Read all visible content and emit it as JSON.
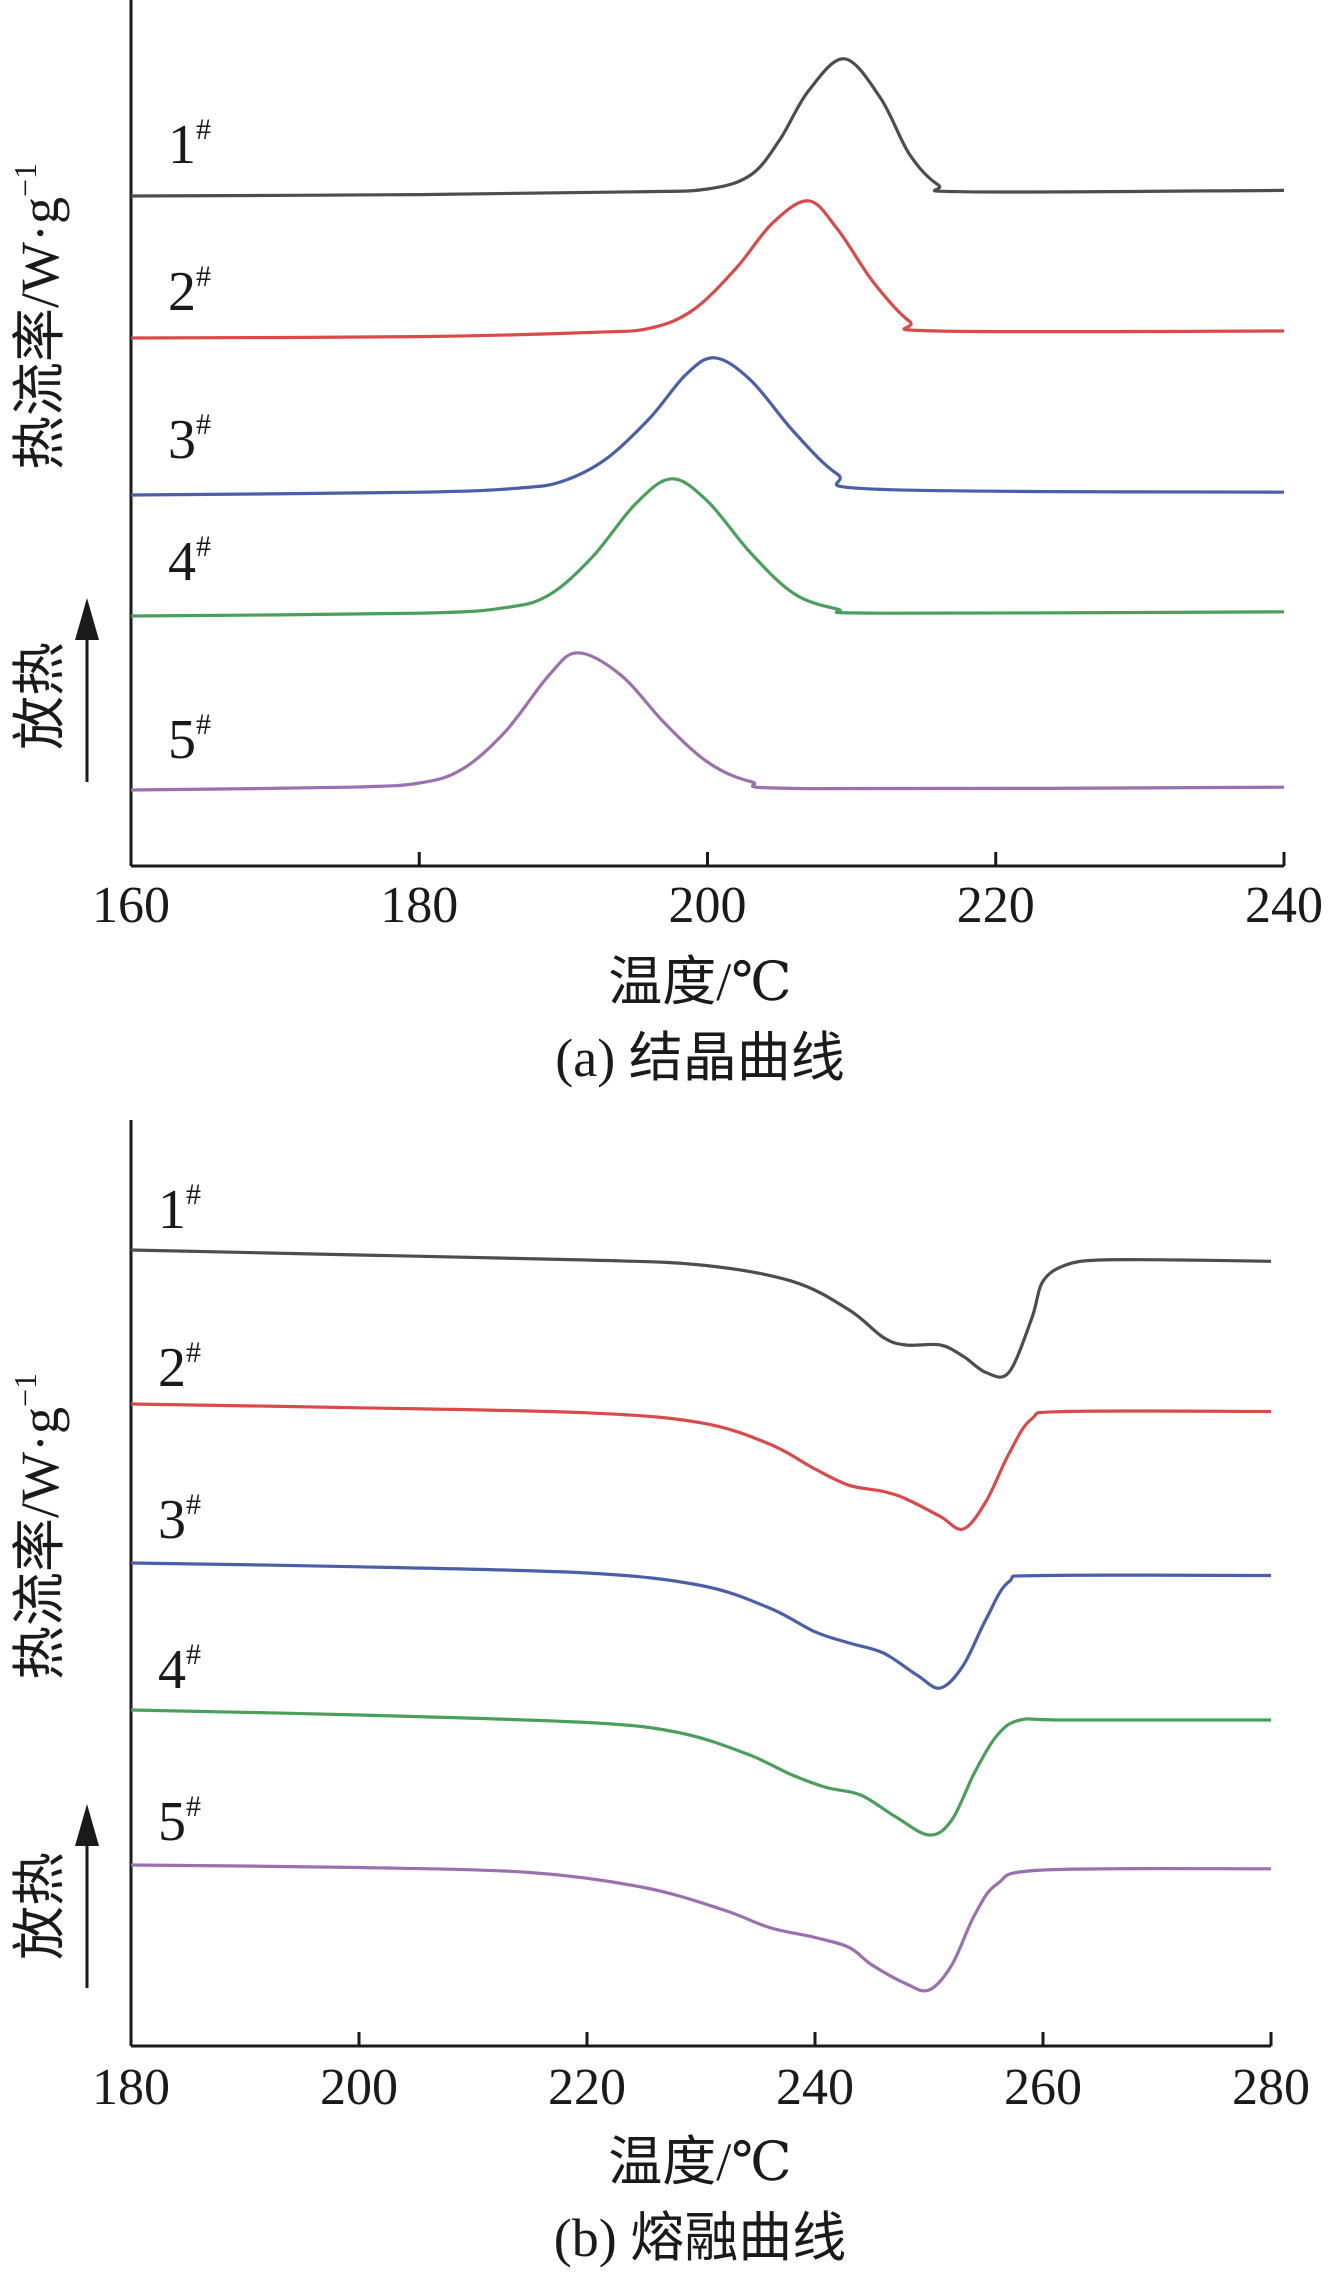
{
  "chart_data": [
    {
      "type": "line",
      "caption": "(a) 结晶曲线",
      "xlabel": "温度/℃",
      "ylabel": "热流率/W·g",
      "ylabel_sup": "−1",
      "exo_label": "放热",
      "xlim": [
        160,
        240
      ],
      "xticks": [
        160,
        180,
        200,
        220,
        240
      ],
      "series": [
        {
          "name": "1",
          "sup": "#",
          "color": "#4d4d4d",
          "points": [
            [
              160,
              0.0
            ],
            [
              180,
              0.01
            ],
            [
              195,
              0.03
            ],
            [
              200,
              0.05
            ],
            [
              203,
              0.15
            ],
            [
              205,
              0.4
            ],
            [
              207,
              0.75
            ],
            [
              209.5,
              0.98
            ],
            [
              212,
              0.7
            ],
            [
              214,
              0.3
            ],
            [
              216,
              0.08
            ],
            [
              218,
              0.03
            ],
            [
              240,
              0.04
            ]
          ]
        },
        {
          "name": "2",
          "sup": "#",
          "color": "#d94a4a",
          "points": [
            [
              160,
              0.0
            ],
            [
              180,
              0.01
            ],
            [
              192,
              0.04
            ],
            [
              196,
              0.07
            ],
            [
              199,
              0.2
            ],
            [
              202,
              0.5
            ],
            [
              204.5,
              0.82
            ],
            [
              207,
              0.98
            ],
            [
              209,
              0.78
            ],
            [
              211.5,
              0.4
            ],
            [
              214,
              0.12
            ],
            [
              216,
              0.05
            ],
            [
              240,
              0.05
            ]
          ]
        },
        {
          "name": "3",
          "sup": "#",
          "color": "#4a5fa8",
          "points": [
            [
              160,
              0.0
            ],
            [
              180,
              0.02
            ],
            [
              187,
              0.05
            ],
            [
              190,
              0.1
            ],
            [
              193,
              0.26
            ],
            [
              196,
              0.55
            ],
            [
              198.5,
              0.86
            ],
            [
              200.5,
              0.98
            ],
            [
              203,
              0.82
            ],
            [
              206,
              0.45
            ],
            [
              209,
              0.15
            ],
            [
              212,
              0.04
            ],
            [
              240,
              0.02
            ]
          ]
        },
        {
          "name": "4",
          "sup": "#",
          "color": "#4aa05a",
          "points": [
            [
              160,
              0.0
            ],
            [
              180,
              0.02
            ],
            [
              186,
              0.06
            ],
            [
              189,
              0.15
            ],
            [
              192,
              0.42
            ],
            [
              195,
              0.8
            ],
            [
              197.5,
              0.98
            ],
            [
              200,
              0.82
            ],
            [
              203,
              0.45
            ],
            [
              206,
              0.16
            ],
            [
              209,
              0.05
            ],
            [
              212,
              0.02
            ],
            [
              240,
              0.03
            ]
          ]
        },
        {
          "name": "5",
          "sup": "#",
          "color": "#9a70b0",
          "points": [
            [
              160,
              0.0
            ],
            [
              175,
              0.02
            ],
            [
              180,
              0.05
            ],
            [
              183,
              0.15
            ],
            [
              186,
              0.42
            ],
            [
              189,
              0.82
            ],
            [
              191,
              0.98
            ],
            [
              194,
              0.82
            ],
            [
              197,
              0.48
            ],
            [
              200,
              0.2
            ],
            [
              203,
              0.06
            ],
            [
              207,
              0.01
            ],
            [
              240,
              0.02
            ]
          ]
        }
      ]
    },
    {
      "type": "line",
      "caption": "(b) 熔融曲线",
      "xlabel": "温度/℃",
      "ylabel": "热流率/W·g",
      "ylabel_sup": "−1",
      "exo_label": "放热",
      "xlim": [
        180,
        280
      ],
      "xticks": [
        180,
        200,
        220,
        240,
        260,
        280
      ],
      "series": [
        {
          "name": "1",
          "sup": "#",
          "color": "#4d4d4d",
          "points": [
            [
              180,
              0.0
            ],
            [
              200,
              -0.04
            ],
            [
              220,
              -0.08
            ],
            [
              230,
              -0.12
            ],
            [
              238,
              -0.25
            ],
            [
              243,
              -0.48
            ],
            [
              246,
              -0.7
            ],
            [
              248,
              -0.76
            ],
            [
              251,
              -0.76
            ],
            [
              253,
              -0.85
            ],
            [
              255,
              -0.98
            ],
            [
              257,
              -0.98
            ],
            [
              259,
              -0.55
            ],
            [
              260,
              -0.25
            ],
            [
              262,
              -0.12
            ],
            [
              265,
              -0.08
            ],
            [
              272,
              -0.08
            ],
            [
              280,
              -0.09
            ]
          ]
        },
        {
          "name": "2",
          "sup": "#",
          "color": "#d94a4a",
          "points": [
            [
              180,
              0.0
            ],
            [
              200,
              -0.03
            ],
            [
              220,
              -0.07
            ],
            [
              230,
              -0.15
            ],
            [
              236,
              -0.32
            ],
            [
              240,
              -0.52
            ],
            [
              243,
              -0.65
            ],
            [
              246,
              -0.7
            ],
            [
              248,
              -0.76
            ],
            [
              251,
              -0.9
            ],
            [
              253,
              -1.0
            ],
            [
              255,
              -0.78
            ],
            [
              257,
              -0.4
            ],
            [
              259,
              -0.12
            ],
            [
              262,
              -0.06
            ],
            [
              280,
              -0.06
            ]
          ]
        },
        {
          "name": "3",
          "sup": "#",
          "color": "#4a5fa8",
          "points": [
            [
              180,
              0.0
            ],
            [
              200,
              -0.03
            ],
            [
              220,
              -0.08
            ],
            [
              230,
              -0.18
            ],
            [
              236,
              -0.36
            ],
            [
              240,
              -0.55
            ],
            [
              243,
              -0.64
            ],
            [
              246,
              -0.72
            ],
            [
              249,
              -0.9
            ],
            [
              251,
              -1.0
            ],
            [
              253,
              -0.82
            ],
            [
              255,
              -0.45
            ],
            [
              257,
              -0.15
            ],
            [
              260,
              -0.1
            ],
            [
              280,
              -0.1
            ]
          ]
        },
        {
          "name": "4",
          "sup": "#",
          "color": "#4aa05a",
          "points": [
            [
              180,
              0.0
            ],
            [
              200,
              -0.04
            ],
            [
              220,
              -0.1
            ],
            [
              228,
              -0.18
            ],
            [
              234,
              -0.35
            ],
            [
              238,
              -0.52
            ],
            [
              241,
              -0.62
            ],
            [
              244,
              -0.68
            ],
            [
              247,
              -0.85
            ],
            [
              250,
              -1.0
            ],
            [
              252,
              -0.88
            ],
            [
              254,
              -0.5
            ],
            [
              256,
              -0.2
            ],
            [
              258,
              -0.08
            ],
            [
              262,
              -0.08
            ],
            [
              280,
              -0.08
            ]
          ]
        },
        {
          "name": "5",
          "sup": "#",
          "color": "#9a70b0",
          "points": [
            [
              180,
              0.0
            ],
            [
              200,
              -0.02
            ],
            [
              215,
              -0.06
            ],
            [
              225,
              -0.18
            ],
            [
              232,
              -0.36
            ],
            [
              236,
              -0.5
            ],
            [
              240,
              -0.58
            ],
            [
              243,
              -0.66
            ],
            [
              245,
              -0.8
            ],
            [
              248,
              -0.95
            ],
            [
              250,
              -1.0
            ],
            [
              252,
              -0.8
            ],
            [
              254,
              -0.4
            ],
            [
              256,
              -0.15
            ],
            [
              260,
              -0.04
            ],
            [
              280,
              -0.03
            ]
          ]
        }
      ]
    }
  ]
}
